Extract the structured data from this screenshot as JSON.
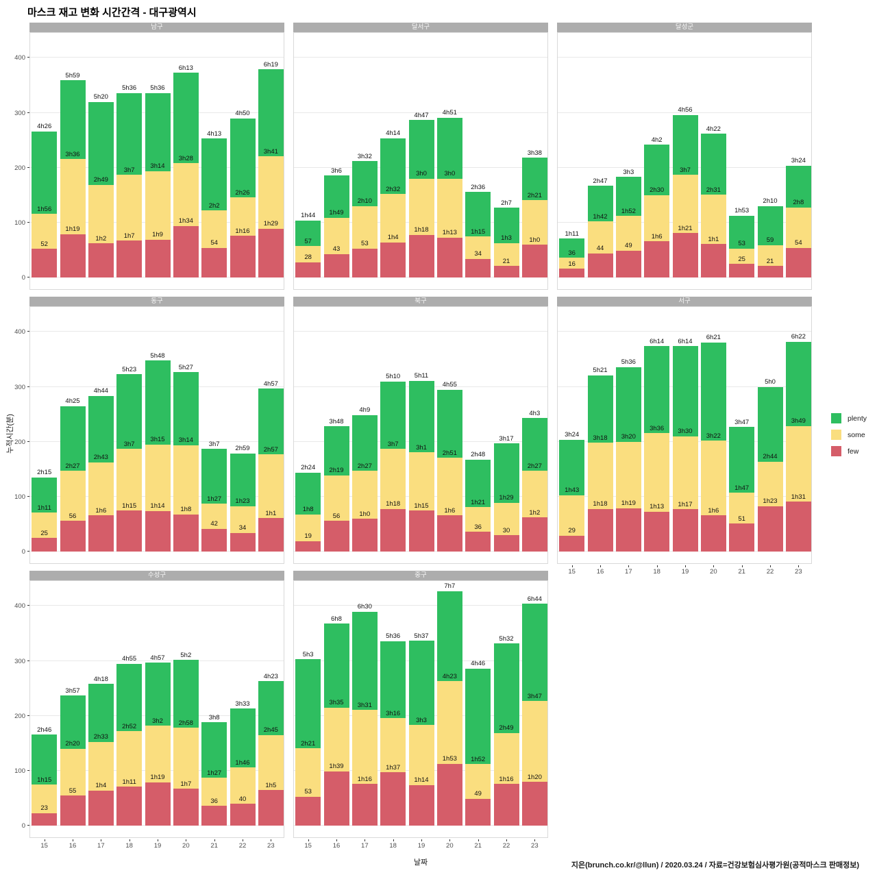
{
  "title": "마스크 재고 변화 시간간격 - 대구광역시",
  "caption": "지은(brunch.co.kr/@llun) / 2020.03.24 / 자료=건강보험심사평가원(공적마스크 판매정보)",
  "chart_data": {
    "type": "bar",
    "stacked": true,
    "facet_layout": "3 columns, fixed shared scales",
    "x": [
      "15",
      "16",
      "17",
      "18",
      "19",
      "20",
      "21",
      "22",
      "23"
    ],
    "xlabel": "날짜",
    "ylabel": "누적시간(분)",
    "yticks": [
      0,
      100,
      200,
      300,
      400
    ],
    "ylim": [
      -21,
      448
    ],
    "grid": "horizontal major gridlines only",
    "label_format": "labels are cumulative stack tops; 'XhY' = X hours Y minutes, bare number = minutes",
    "legend": {
      "position": "right",
      "entries": [
        {
          "label": "plenty",
          "color": "#2ebe60"
        },
        {
          "label": "some",
          "color": "#fade7f"
        },
        {
          "label": "few",
          "color": "#d55d69"
        }
      ]
    },
    "facets": [
      {
        "name": "남구",
        "col": 1,
        "row": 1,
        "few": [
          "52",
          "1h19",
          "1h2",
          "1h7",
          "1h9",
          "1h34",
          "54",
          "1h16",
          "1h29"
        ],
        "some_cum": [
          "1h56",
          "3h36",
          "2h49",
          "3h7",
          "3h14",
          "3h28",
          "2h2",
          "2h26",
          "3h41"
        ],
        "total": [
          "4h26",
          "5h59",
          "5h20",
          "5h36",
          "5h36",
          "6h13",
          "4h13",
          "4h50",
          "6h19"
        ]
      },
      {
        "name": "달서구",
        "col": 2,
        "row": 1,
        "few": [
          "28",
          "43",
          "53",
          "1h4",
          "1h18",
          "1h13",
          "34",
          "21",
          "1h0"
        ],
        "some_cum": [
          "57",
          "1h49",
          "2h10",
          "2h32",
          "3h0",
          "3h0",
          "1h15",
          "1h3",
          "2h21"
        ],
        "total": [
          "1h44",
          "3h6",
          "3h32",
          "4h14",
          "4h47",
          "4h51",
          "2h36",
          "2h7",
          "3h38"
        ]
      },
      {
        "name": "달성군",
        "col": 3,
        "row": 1,
        "few": [
          "16",
          "44",
          "49",
          "1h6",
          "1h21",
          "1h1",
          "25",
          "21",
          "54"
        ],
        "some_cum": [
          "36",
          "1h42",
          "1h52",
          "2h30",
          "3h7",
          "2h31",
          "53",
          "59",
          "2h8"
        ],
        "total": [
          "1h11",
          "2h47",
          "3h3",
          "4h2",
          "4h56",
          "4h22",
          "1h53",
          "2h10",
          "3h24"
        ]
      },
      {
        "name": "동구",
        "col": 1,
        "row": 2,
        "few": [
          "25",
          "56",
          "1h6",
          "1h15",
          "1h14",
          "1h8",
          "42",
          "34",
          "1h1"
        ],
        "some_cum": [
          "1h11",
          "2h27",
          "2h43",
          "3h7",
          "3h15",
          "3h14",
          "1h27",
          "1h23",
          "2h57"
        ],
        "total": [
          "2h15",
          "4h25",
          "4h44",
          "5h23",
          "5h48",
          "5h27",
          "3h7",
          "2h59",
          "4h57"
        ]
      },
      {
        "name": "북구",
        "col": 2,
        "row": 2,
        "few": [
          "19",
          "56",
          "1h0",
          "1h18",
          "1h15",
          "1h6",
          "36",
          "30",
          "1h2"
        ],
        "some_cum": [
          "1h8",
          "2h19",
          "2h27",
          "3h7",
          "3h1",
          "2h51",
          "1h21",
          "1h29",
          "2h27"
        ],
        "total": [
          "2h24",
          "3h48",
          "4h9",
          "5h10",
          "5h11",
          "4h55",
          "2h48",
          "3h17",
          "4h3"
        ]
      },
      {
        "name": "서구",
        "col": 3,
        "row": 2,
        "few": [
          "29",
          "1h18",
          "1h19",
          "1h13",
          "1h17",
          "1h6",
          "51",
          "1h23",
          "1h31"
        ],
        "some_cum": [
          "1h43",
          "3h18",
          "3h20",
          "3h36",
          "3h30",
          "3h22",
          "1h47",
          "2h44",
          "3h49"
        ],
        "total": [
          "3h24",
          "5h21",
          "5h36",
          "6h14",
          "6h14",
          "6h21",
          "3h47",
          "5h0",
          "6h22"
        ]
      },
      {
        "name": "수성구",
        "col": 1,
        "row": 3,
        "few": [
          "23",
          "55",
          "1h4",
          "1h11",
          "1h19",
          "1h7",
          "36",
          "40",
          "1h5"
        ],
        "some_cum": [
          "1h15",
          "2h20",
          "2h33",
          "2h52",
          "3h2",
          "2h58",
          "1h27",
          "1h46",
          "2h45"
        ],
        "total": [
          "2h46",
          "3h57",
          "4h18",
          "4h55",
          "4h57",
          "5h2",
          "3h8",
          "3h33",
          "4h23"
        ]
      },
      {
        "name": "중구",
        "col": 2,
        "row": 3,
        "few": [
          "53",
          "1h39",
          "1h16",
          "1h37",
          "1h14",
          "1h53",
          "49",
          "1h16",
          "1h20"
        ],
        "some_cum": [
          "2h21",
          "3h35",
          "3h31",
          "3h16",
          "3h3",
          "4h23",
          "1h52",
          "2h49",
          "3h47"
        ],
        "total": [
          "5h3",
          "6h8",
          "6h30",
          "5h36",
          "5h37",
          "7h7",
          "4h46",
          "5h32",
          "6h44"
        ]
      }
    ]
  }
}
